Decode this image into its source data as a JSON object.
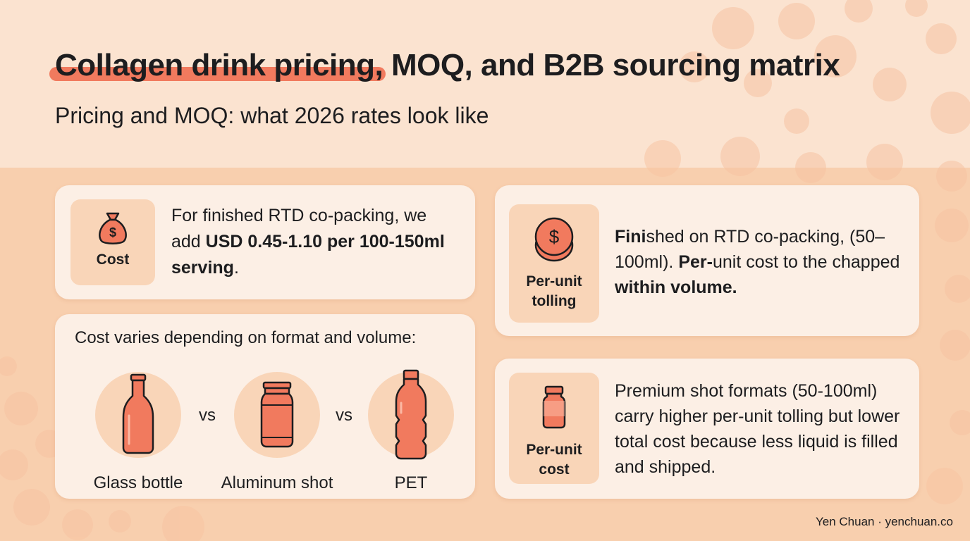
{
  "header": {
    "title_highlight": "Collagen drink pricing,",
    "title_rest": " MOQ, and B2B sourcing matrix",
    "subtitle": "Pricing and MOQ: what 2026 rates look like"
  },
  "cost_card": {
    "icon": "money-bag-icon",
    "label": "Cost",
    "text_1": "For finished RTD co-packing, we add ",
    "text_bold": "USD 0.45-1.10 per 100-150ml serving",
    "text_2": "."
  },
  "format_card": {
    "heading": "Cost varies depending on format and volume:",
    "formats": [
      {
        "name": "Glass bottle",
        "icon": "glass-bottle-icon"
      },
      {
        "name": "Aluminum shot",
        "icon": "jar-icon"
      },
      {
        "name": "PET",
        "icon": "pet-bottle-icon"
      }
    ],
    "vs": "vs"
  },
  "tolling_card": {
    "icon": "coin-stack-icon",
    "label": "Per-unit tolling",
    "t1": "Fin",
    "t1b": "i",
    "t2": "shed on RTD co-packing, (50–100ml). ",
    "t3b": "Per-",
    "t4": "unit cost to the chapped ",
    "t5b": "within volume."
  },
  "unitcost_card": {
    "icon": "small-bottle-icon",
    "label": "Per-unit cost",
    "text": "Premium shot formats (50-100ml) carry higher per-unit tolling but lower total cost because less liquid is filled and shipped."
  },
  "footer": {
    "credit": "Yen Chuan · yenchuan.co"
  },
  "colors": {
    "accent": "#f17a5e",
    "background": "#f8cfae",
    "card": "#fcefe5",
    "icon_bg": "#f9d5b8"
  }
}
